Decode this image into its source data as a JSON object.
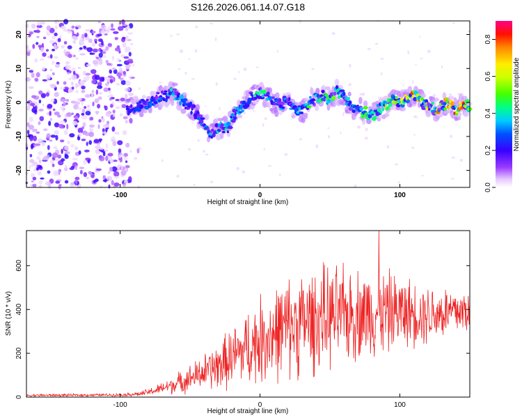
{
  "title": "S126.2026.061.14.07.G18",
  "chart_data": [
    {
      "name": "spectrogram",
      "type": "heatmap",
      "xlabel": "Height of straight line (km)",
      "ylabel": "Frequency (Hz)",
      "xlim": [
        -167,
        150
      ],
      "ylim": [
        -25,
        24
      ],
      "xticks": [
        -100,
        0,
        100
      ],
      "xtick_labels": [
        "-100",
        "0",
        "100"
      ],
      "yticks": [
        -20,
        -10,
        0,
        10,
        20
      ],
      "ytick_labels": [
        "-20",
        "-10",
        "0",
        "10",
        "20"
      ],
      "colorbar": {
        "label": "Normalized spectral amplitude",
        "range": [
          0.0,
          0.9
        ],
        "ticks": [
          0.0,
          0.2,
          0.4,
          0.6,
          0.8
        ],
        "tick_labels": [
          "0.0",
          "0.2",
          "0.4",
          "0.6",
          "0.8"
        ]
      },
      "noise_region_x": [
        -167,
        -92
      ],
      "signal_track": {
        "x": [
          -95,
          -85,
          -75,
          -68,
          -62,
          -57,
          -52,
          -46,
          -40,
          -35,
          -31,
          -27,
          -23,
          -19,
          -15,
          -10,
          -5,
          0,
          5,
          10,
          15,
          20,
          25,
          30,
          35,
          40,
          45,
          50,
          55,
          60,
          65,
          70,
          75,
          80,
          85,
          90,
          95,
          100,
          105,
          110,
          115,
          120,
          125,
          130,
          135,
          140,
          145,
          150
        ],
        "y": [
          -2,
          -1,
          1,
          2,
          3,
          1,
          -1,
          -3,
          -6,
          -9,
          -8,
          -7,
          -8,
          -4,
          -2,
          0,
          2,
          3,
          2,
          0,
          -1,
          1,
          -2,
          -3,
          0,
          1,
          2,
          1,
          3,
          2,
          -1,
          -2,
          -3,
          -4,
          -2,
          -1,
          1,
          0,
          1,
          2,
          0,
          -1,
          -2,
          -1,
          0,
          -2,
          -1,
          -1
        ],
        "amplitude": [
          0.15,
          0.2,
          0.25,
          0.3,
          0.35,
          0.3,
          0.2,
          0.2,
          0.25,
          0.3,
          0.35,
          0.4,
          0.45,
          0.35,
          0.3,
          0.3,
          0.35,
          0.45,
          0.4,
          0.3,
          0.3,
          0.35,
          0.3,
          0.3,
          0.45,
          0.5,
          0.5,
          0.45,
          0.5,
          0.45,
          0.35,
          0.4,
          0.45,
          0.4,
          0.45,
          0.5,
          0.55,
          0.6,
          0.7,
          0.8,
          0.75,
          0.7,
          0.75,
          0.85,
          0.8,
          0.9,
          0.85,
          0.8
        ]
      }
    },
    {
      "name": "snr",
      "type": "line",
      "xlabel": "Height of straight line (km)",
      "ylabel": "SNR (10 * v/v)",
      "xlim": [
        -167,
        150
      ],
      "ylim": [
        0,
        760
      ],
      "xticks": [
        -100,
        0,
        100
      ],
      "xtick_labels": [
        "-100",
        "0",
        "100"
      ],
      "yticks": [
        0,
        200,
        400,
        600
      ],
      "ytick_labels": [
        "0",
        "200",
        "400",
        "600"
      ],
      "color": "#ee2222",
      "envelope": {
        "x": [
          -167,
          -100,
          -85,
          -75,
          -60,
          -45,
          -30,
          -20,
          -10,
          0,
          10,
          20,
          30,
          40,
          50,
          60,
          70,
          80,
          90,
          100,
          110,
          120,
          130,
          140,
          150
        ],
        "mean": [
          8,
          10,
          15,
          30,
          60,
          100,
          140,
          180,
          220,
          260,
          290,
          320,
          340,
          355,
          365,
          375,
          380,
          385,
          390,
          390,
          385,
          380,
          385,
          390,
          395
        ],
        "spread": [
          6,
          6,
          12,
          20,
          45,
          70,
          110,
          140,
          170,
          200,
          220,
          230,
          240,
          240,
          230,
          220,
          210,
          200,
          190,
          170,
          150,
          140,
          130,
          120,
          110
        ]
      },
      "peak": {
        "x": 85,
        "y": 760
      }
    }
  ]
}
